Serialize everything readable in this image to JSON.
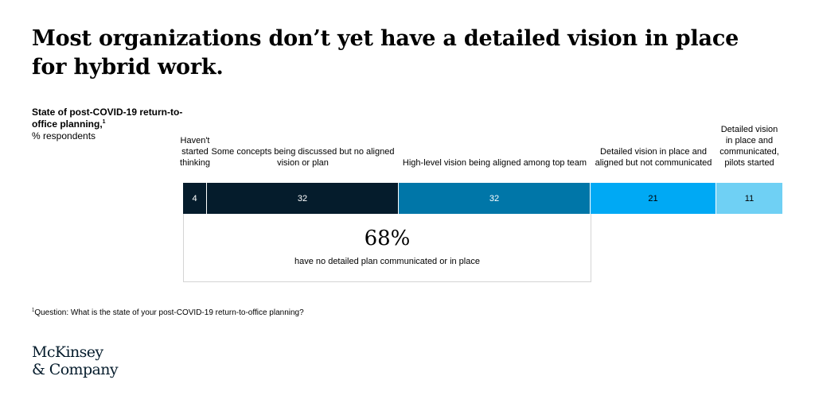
{
  "title": "Most organizations don’t yet have a detailed vision in place for hybrid work.",
  "meta": {
    "subtitle": "State of post-COVID-19 return-to-office planning,",
    "subtitle_footnote_marker": "1",
    "unit": "% respondents"
  },
  "chart_data": {
    "type": "bar",
    "orientation": "horizontal-stacked",
    "title": "Most organizations don’t yet have a detailed vision in place for hybrid work.",
    "subtitle": "State of post-COVID-19 return-to-office planning,",
    "unit": "% respondents",
    "xlim": [
      0,
      100
    ],
    "categories": [
      "Haven't started thinking",
      "Some concepts being discussed but no aligned vision or plan",
      "High-level vision being aligned among top team",
      "Detailed vision in place and aligned but not communicated",
      "Detailed vision in place and communicated, pilots started"
    ],
    "values": [
      4,
      32,
      32,
      21,
      11
    ],
    "colors": [
      "#051c2c",
      "#051c2c",
      "#0076a8",
      "#00a9f4",
      "#6fd0f4"
    ],
    "value_label_colors": [
      "#ffffff",
      "#ffffff",
      "#ffffff",
      "#000000",
      "#000000"
    ],
    "annotation": {
      "value": "68%",
      "text": "have no detailed plan communicated or in place",
      "spans_categories": [
        0,
        1,
        2
      ]
    }
  },
  "footnote": {
    "marker": "1",
    "text": "Question: What is the state of your post-COVID-19 return-to-office planning?"
  },
  "logo": {
    "line1": "McKinsey",
    "line2": "& Company"
  }
}
